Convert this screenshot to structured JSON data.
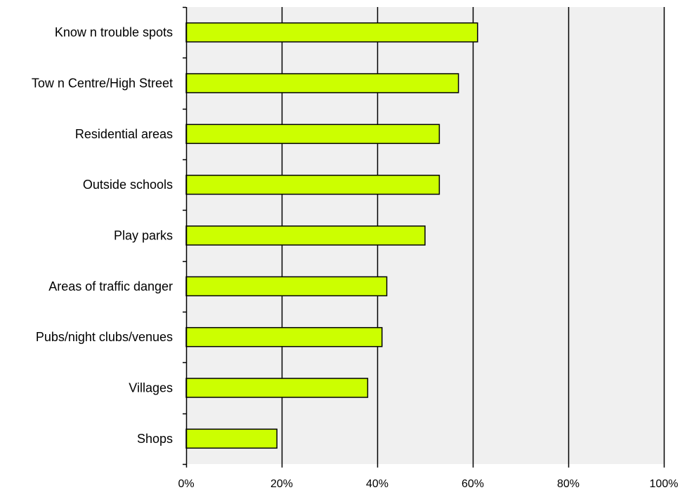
{
  "chart_data": {
    "type": "bar",
    "orientation": "horizontal",
    "title": "",
    "xlabel": "",
    "ylabel": "",
    "categories": [
      "Know n trouble spots",
      "Tow n Centre/High Street",
      "Residential areas",
      "Outside schools",
      "Play parks",
      "Areas of traffic danger",
      "Pubs/night clubs/venues",
      "Villages",
      "Shops"
    ],
    "values": [
      61,
      57,
      53,
      53,
      50,
      42,
      41,
      38,
      19
    ],
    "xlim": [
      0,
      100
    ],
    "x_ticks": [
      0,
      20,
      40,
      60,
      80,
      100
    ],
    "x_tick_labels": [
      "0%",
      "20%",
      "40%",
      "60%",
      "80%",
      "100%"
    ],
    "grid": "vertical",
    "legend": "none",
    "colors": {
      "bar_fill": "#ccff00",
      "bar_stroke": "#000000",
      "plot_background": "#f0f0f0",
      "gridline": "#000000"
    }
  }
}
